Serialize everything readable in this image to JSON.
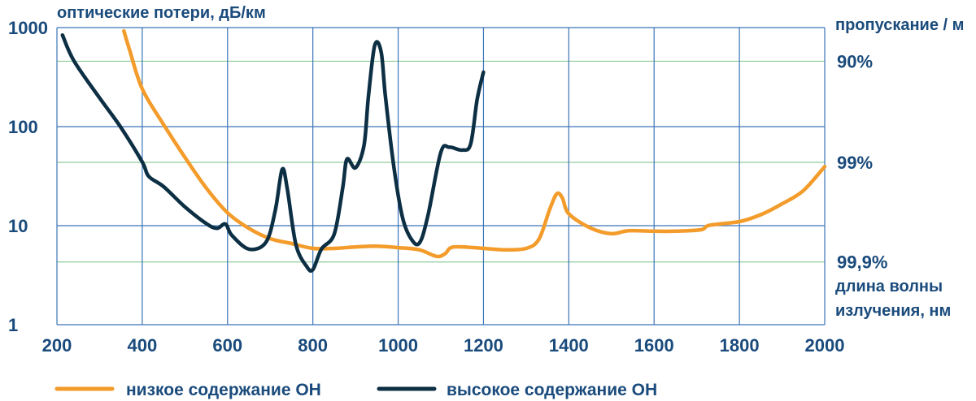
{
  "chart_data": {
    "type": "line",
    "title": "",
    "ylabel": "оптические потери, дБ/км",
    "ylabel_right": "пропускание / м",
    "xlabel": "длина волны\nизлучения, нм",
    "x_ticks": [
      "200",
      "400",
      "600",
      "800",
      "1000",
      "1200",
      "1400",
      "1600",
      "1800",
      "2000"
    ],
    "y_ticks": [
      "1",
      "10",
      "100",
      "1000"
    ],
    "y_right_ticks": [
      "90%",
      "99%",
      "99,9%"
    ],
    "y_right_tick_values": [
      457.5,
      43.6,
      4.3
    ],
    "xlim": [
      200,
      2000
    ],
    "ylim": [
      1,
      1000
    ],
    "y_scale": "log",
    "grid": true,
    "legend_position": "bottom-left",
    "colors": {
      "low_oh": "#f39c2b",
      "high_oh": "#0d2f44",
      "axis_text": "#1a4b7c",
      "grid_main": "#3a74b8",
      "grid_minor": "#8fcb9b"
    },
    "series": [
      {
        "name": "низкое содержание ОН",
        "color": "#f39c2b",
        "points": [
          [
            357,
            925
          ],
          [
            370,
            600
          ],
          [
            400,
            240
          ],
          [
            450,
            105
          ],
          [
            500,
            49
          ],
          [
            550,
            24
          ],
          [
            600,
            13.5
          ],
          [
            650,
            9.4
          ],
          [
            700,
            7.4
          ],
          [
            750,
            6.6
          ],
          [
            800,
            5.9
          ],
          [
            850,
            5.9
          ],
          [
            900,
            6.1
          ],
          [
            950,
            6.2
          ],
          [
            1000,
            6.0
          ],
          [
            1050,
            5.7
          ],
          [
            1090,
            4.9
          ],
          [
            1110,
            5.2
          ],
          [
            1130,
            6.1
          ],
          [
            1200,
            5.9
          ],
          [
            1250,
            5.7
          ],
          [
            1300,
            5.9
          ],
          [
            1330,
            7.3
          ],
          [
            1355,
            14.5
          ],
          [
            1372,
            21.0
          ],
          [
            1385,
            19.0
          ],
          [
            1400,
            13.2
          ],
          [
            1450,
            9.5
          ],
          [
            1500,
            8.3
          ],
          [
            1540,
            8.9
          ],
          [
            1600,
            8.8
          ],
          [
            1650,
            8.8
          ],
          [
            1710,
            9.1
          ],
          [
            1730,
            10.1
          ],
          [
            1800,
            11.0
          ],
          [
            1850,
            12.9
          ],
          [
            1900,
            16.6
          ],
          [
            1950,
            22.6
          ],
          [
            2000,
            39.5
          ]
        ]
      },
      {
        "name": "высокое содержание ОН",
        "color": "#0d2f44",
        "points": [
          [
            213,
            840
          ],
          [
            240,
            460
          ],
          [
            300,
            195
          ],
          [
            350,
            98
          ],
          [
            400,
            44
          ],
          [
            415,
            31.5
          ],
          [
            450,
            24.8
          ],
          [
            500,
            15.5
          ],
          [
            550,
            10.5
          ],
          [
            575,
            9.4
          ],
          [
            595,
            10.4
          ],
          [
            610,
            8.0
          ],
          [
            650,
            5.8
          ],
          [
            690,
            6.8
          ],
          [
            712,
            14.3
          ],
          [
            728,
            37.0
          ],
          [
            740,
            23.6
          ],
          [
            760,
            6.5
          ],
          [
            785,
            3.9
          ],
          [
            800,
            3.6
          ],
          [
            820,
            5.8
          ],
          [
            850,
            8.2
          ],
          [
            870,
            24.2
          ],
          [
            880,
            47.0
          ],
          [
            900,
            38.4
          ],
          [
            920,
            65
          ],
          [
            930,
            195
          ],
          [
            945,
            660
          ],
          [
            960,
            570
          ],
          [
            970,
            205
          ],
          [
            990,
            39
          ],
          [
            1010,
            12.2
          ],
          [
            1030,
            7.4
          ],
          [
            1050,
            6.7
          ],
          [
            1070,
            12.8
          ],
          [
            1100,
            55
          ],
          [
            1120,
            62
          ],
          [
            1150,
            58
          ],
          [
            1170,
            67
          ],
          [
            1185,
            187
          ],
          [
            1200,
            355
          ]
        ]
      }
    ]
  }
}
